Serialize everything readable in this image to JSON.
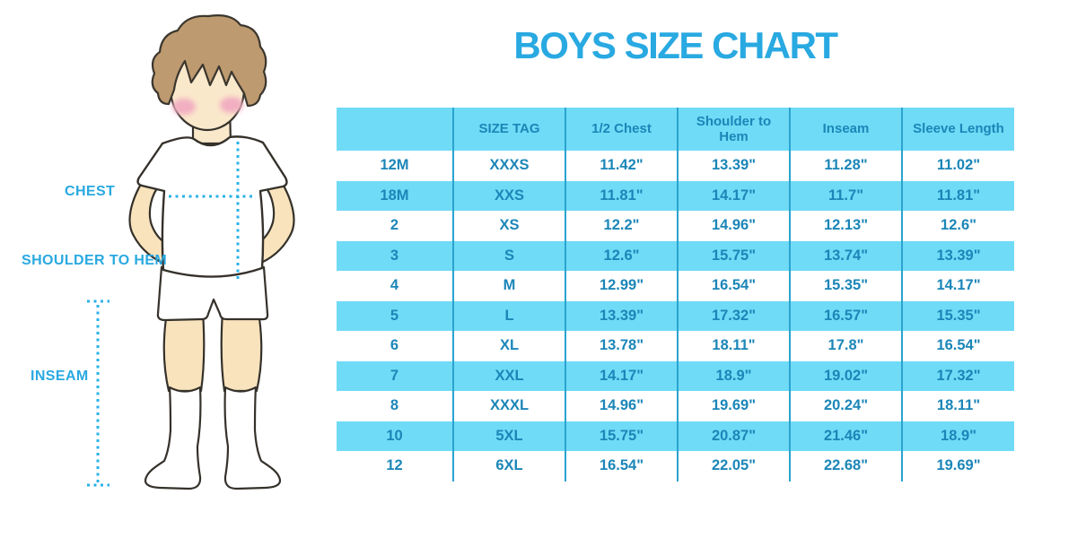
{
  "chart_data": {
    "type": "table",
    "title": "BOYS SIZE CHART",
    "headers": [
      "",
      "SIZE TAG",
      "1/2 Chest",
      "Shoulder to Hem",
      "Inseam",
      "Sleeve Length"
    ],
    "rows": [
      [
        "12M",
        "XXXS",
        "11.42\"",
        "13.39\"",
        "11.28\"",
        "11.02\""
      ],
      [
        "18M",
        "XXS",
        "11.81\"",
        "14.17\"",
        "11.7\"",
        "11.81\""
      ],
      [
        "2",
        "XS",
        "12.2\"",
        "14.96\"",
        "12.13\"",
        "12.6\""
      ],
      [
        "3",
        "S",
        "12.6\"",
        "15.75\"",
        "13.74\"",
        "13.39\""
      ],
      [
        "4",
        "M",
        "12.99\"",
        "16.54\"",
        "15.35\"",
        "14.17\""
      ],
      [
        "5",
        "L",
        "13.39\"",
        "17.32\"",
        "16.57\"",
        "15.35\""
      ],
      [
        "6",
        "XL",
        "13.78\"",
        "18.11\"",
        "17.8\"",
        "16.54\""
      ],
      [
        "7",
        "XXL",
        "14.17\"",
        "18.9\"",
        "19.02\"",
        "17.32\""
      ],
      [
        "8",
        "XXXL",
        "14.96\"",
        "19.69\"",
        "20.24\"",
        "18.11\""
      ],
      [
        "10",
        "5XL",
        "15.75\"",
        "20.87\"",
        "21.46\"",
        "18.9\""
      ],
      [
        "12",
        "6XL",
        "16.54\"",
        "22.05\"",
        "22.68\"",
        "19.69\""
      ]
    ],
    "layout": {
      "striped": true,
      "vertical_grid_only": true,
      "header_background": "#6fdbf6"
    }
  },
  "figure": {
    "labels": {
      "chest": "CHEST",
      "shoulder_to_hem": "SHOULDER TO HEM",
      "inseam": "INSEAM"
    }
  },
  "colors": {
    "title_blue": "#29a9e1",
    "table_text_blue": "#1b86b8",
    "row_fill_blue": "#6fdbf6",
    "grid_line_blue": "#2aa3d0",
    "dotted_line_cyan": "#2ab2e8",
    "hair_brown": "#bd9a6f",
    "skin": "#fae8cb",
    "cheek_pink": "#f2afc2"
  }
}
